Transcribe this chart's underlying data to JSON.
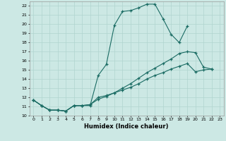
{
  "xlabel": "Humidex (Indice chaleur)",
  "bg_color": "#cce8e4",
  "grid_color": "#b0d4cf",
  "line_color": "#1a6b63",
  "xlim": [
    -0.5,
    23.5
  ],
  "ylim": [
    10,
    22.5
  ],
  "xs1": [
    0,
    1,
    2,
    3,
    4,
    5,
    6,
    7,
    8,
    9,
    10,
    11,
    12,
    13,
    14,
    15,
    16,
    17,
    18,
    19
  ],
  "ys1": [
    11.7,
    11.1,
    10.6,
    10.6,
    10.5,
    11.1,
    11.1,
    11.1,
    14.4,
    15.6,
    19.9,
    21.4,
    21.5,
    21.8,
    22.2,
    22.2,
    20.6,
    18.9,
    18.0,
    19.8
  ],
  "xs2": [
    0,
    1,
    2,
    3,
    4,
    5,
    6,
    7,
    8,
    9,
    10,
    11,
    12,
    13,
    14,
    15,
    16,
    17,
    18,
    19,
    20,
    21,
    22
  ],
  "ys2": [
    11.7,
    11.1,
    10.6,
    10.6,
    10.5,
    11.1,
    11.1,
    11.2,
    12.0,
    12.2,
    12.5,
    12.8,
    13.1,
    13.5,
    14.0,
    14.4,
    14.7,
    15.1,
    15.4,
    15.7,
    14.8,
    15.0,
    15.1
  ],
  "xs3": [
    0,
    1,
    2,
    3,
    4,
    5,
    6,
    7,
    8,
    9,
    10,
    11,
    12,
    13,
    14,
    15,
    16,
    17,
    18,
    19,
    20,
    21,
    22
  ],
  "ys3": [
    11.7,
    11.1,
    10.6,
    10.6,
    10.5,
    11.1,
    11.1,
    11.2,
    11.8,
    12.1,
    12.5,
    13.0,
    13.5,
    14.1,
    14.7,
    15.2,
    15.7,
    16.2,
    16.8,
    17.0,
    16.9,
    15.3,
    15.1
  ]
}
